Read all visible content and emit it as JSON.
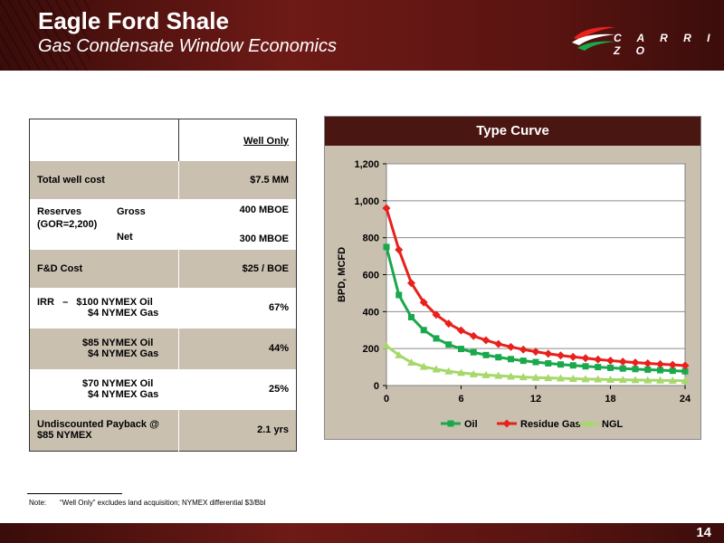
{
  "header": {
    "title": "Eagle Ford Shale",
    "subtitle": "Gas Condensate Window Economics",
    "logo_text": "C A R R I Z O"
  },
  "table": {
    "column_header": "Well Only",
    "total_well_cost": {
      "label": "Total well cost",
      "value": "$7.5 MM"
    },
    "reserves": {
      "label": "Reserves",
      "gor": "(GOR=2,200)",
      "gross_label": "Gross",
      "gross_value": "400 MBOE",
      "net_label": "Net",
      "net_value": "300 MBOE"
    },
    "fd_cost": {
      "label": "F&D Cost",
      "value": "$25 / BOE"
    },
    "irr_label": "IRR",
    "irr_dash": "–",
    "irr_rows": [
      {
        "oil": "$100 NYMEX Oil",
        "gas": "$4 NYMEX Gas",
        "value": "67%"
      },
      {
        "oil": "$85 NYMEX Oil",
        "gas": "$4 NYMEX Gas",
        "value": "44%"
      },
      {
        "oil": "$70 NYMEX Oil",
        "gas": "$4 NYMEX Gas",
        "value": "25%"
      }
    ],
    "payback": {
      "label_1": "Undiscounted Payback @",
      "label_2": "$85 NYMEX",
      "value": "2.1 yrs"
    }
  },
  "note": {
    "label": "Note:",
    "text": "“Well Only” excludes land acquisition; NYMEX differential $3/Bbl"
  },
  "page_number": "14",
  "colors": {
    "brand_dark": "#4a1612",
    "panel_tan": "#c9c0b0",
    "oil": "#1aa84c",
    "residue_gas": "#e8211c",
    "ngl": "#a6d86a"
  },
  "chart_data": {
    "type": "line",
    "title": "Type Curve",
    "xlabel": "",
    "ylabel": "BPD, MCFD",
    "xlim": [
      0,
      24
    ],
    "ylim": [
      0,
      1200
    ],
    "xticks": [
      0,
      6,
      12,
      18,
      24
    ],
    "yticks": [
      0,
      200,
      400,
      600,
      800,
      1000,
      1200
    ],
    "ytick_labels": [
      "0",
      "200",
      "400",
      "600",
      "800",
      "1,000",
      "1,200"
    ],
    "grid": true,
    "legend_position": "bottom",
    "x": [
      0,
      1,
      2,
      3,
      4,
      5,
      6,
      7,
      8,
      9,
      10,
      11,
      12,
      13,
      14,
      15,
      16,
      17,
      18,
      19,
      20,
      21,
      22,
      23,
      24
    ],
    "series": [
      {
        "name": "Oil",
        "color": "#1aa84c",
        "marker": "square",
        "values": [
          750,
          490,
          370,
          300,
          255,
          222,
          198,
          180,
          165,
          153,
          143,
          134,
          127,
          120,
          114,
          109,
          104,
          100,
          96,
          92,
          89,
          86,
          83,
          80,
          77
        ]
      },
      {
        "name": "Residue Gas",
        "color": "#e8211c",
        "marker": "diamond",
        "values": [
          960,
          735,
          555,
          450,
          383,
          335,
          298,
          268,
          245,
          225,
          209,
          195,
          183,
          172,
          163,
          155,
          148,
          141,
          135,
          129,
          124,
          120,
          116,
          112,
          108
        ]
      },
      {
        "name": "NGL",
        "color": "#a6d86a",
        "marker": "triangle",
        "values": [
          215,
          165,
          125,
          102,
          88,
          77,
          69,
          62,
          57,
          53,
          49,
          46,
          43,
          41,
          39,
          37,
          35,
          34,
          32,
          31,
          30,
          29,
          28,
          27,
          26
        ]
      }
    ]
  }
}
